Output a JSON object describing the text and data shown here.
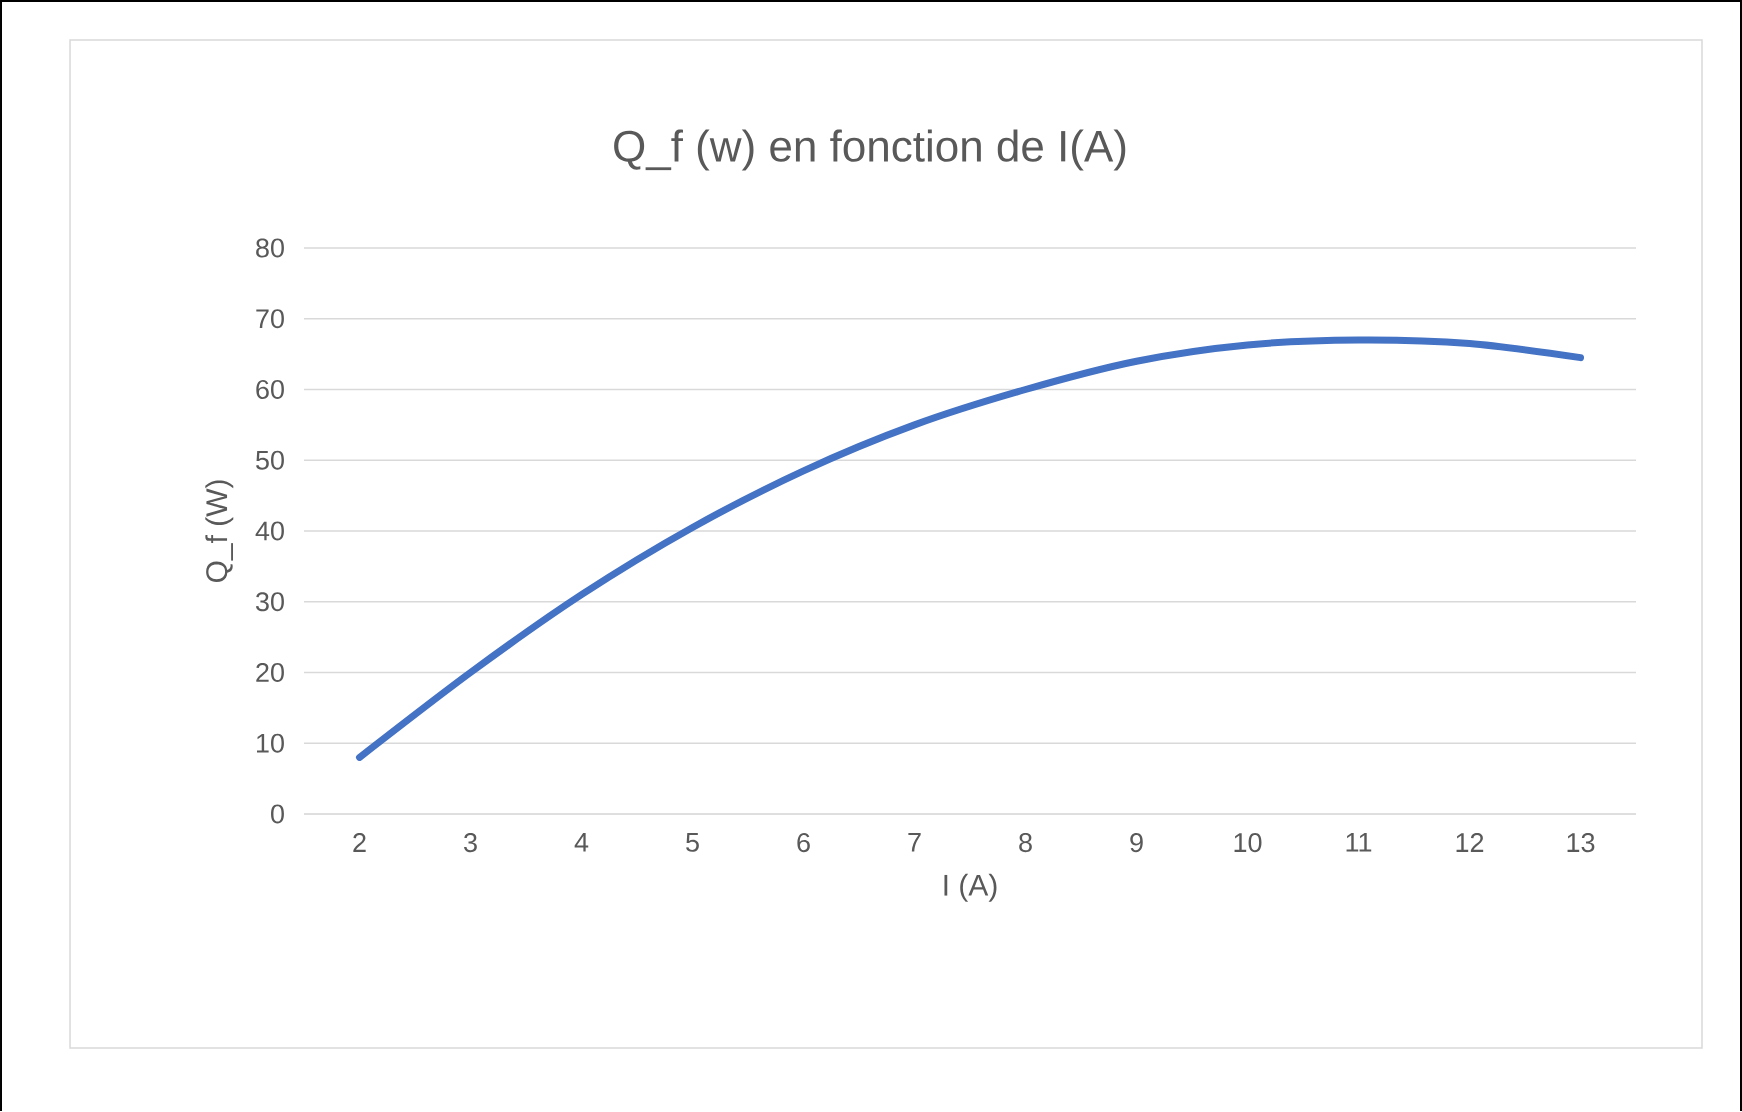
{
  "chart_data": {
    "type": "line",
    "title": "Q_f  (w) en fonction de I(A)",
    "xlabel": "I (A)",
    "ylabel": "Q_f (W)",
    "categories": [
      "2",
      "3",
      "4",
      "5",
      "6",
      "7",
      "8",
      "9",
      "10",
      "11",
      "12",
      "13"
    ],
    "values": [
      8,
      20,
      31,
      40.5,
      48.5,
      55,
      60,
      64,
      66.3,
      67,
      66.5,
      64.5
    ],
    "color": "#4472c4",
    "ylim": [
      0,
      80
    ],
    "yticks": [
      0,
      10,
      20,
      30,
      40,
      50,
      60,
      70,
      80
    ],
    "grid": "y",
    "marker": "none",
    "line_style": "solid"
  }
}
